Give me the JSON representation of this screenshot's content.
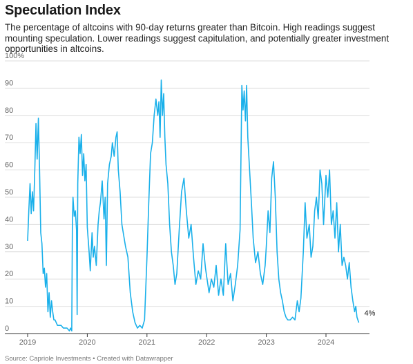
{
  "title": "Speculation Index",
  "subtitle": "The percentage of altcoins with 90-day returns greater than Bitcoin. High readings suggest mounting speculation. Lower readings suggest capitulation, and potentially greater investment opportunities in altcoins.",
  "source": "Source: Capriole Investments • Created with Datawrapper",
  "colors": {
    "line": "#1ab0ea",
    "grid": "#dedede",
    "axis": "#333333"
  },
  "chart_data": {
    "type": "line",
    "title": "Speculation Index",
    "xlabel": "",
    "ylabel": "",
    "ylim": [
      0,
      100
    ],
    "xlim": [
      2019.0,
      2024.67
    ],
    "y_ticks": [
      {
        "value": 100,
        "label": "100%"
      },
      {
        "value": 90,
        "label": "90"
      },
      {
        "value": 80,
        "label": "80"
      },
      {
        "value": 70,
        "label": "70"
      },
      {
        "value": 60,
        "label": "60"
      },
      {
        "value": 50,
        "label": "50"
      },
      {
        "value": 40,
        "label": "40"
      },
      {
        "value": 30,
        "label": "30"
      },
      {
        "value": 20,
        "label": "20"
      },
      {
        "value": 10,
        "label": "10"
      },
      {
        "value": 0,
        "label": "0"
      }
    ],
    "x_ticks": [
      {
        "value": 2019,
        "label": "2019"
      },
      {
        "value": 2020,
        "label": "2020"
      },
      {
        "value": 2021,
        "label": "2021"
      },
      {
        "value": 2022,
        "label": "2022"
      },
      {
        "value": 2023,
        "label": "2023"
      },
      {
        "value": 2024,
        "label": "2024"
      }
    ],
    "grid": true,
    "end_label": "4%",
    "series": [
      {
        "values": [
          [
            2019.0,
            34
          ],
          [
            2019.02,
            45
          ],
          [
            2019.04,
            55
          ],
          [
            2019.06,
            44
          ],
          [
            2019.08,
            52
          ],
          [
            2019.1,
            45
          ],
          [
            2019.12,
            60
          ],
          [
            2019.14,
            77
          ],
          [
            2019.16,
            64
          ],
          [
            2019.18,
            79
          ],
          [
            2019.2,
            60
          ],
          [
            2019.22,
            37
          ],
          [
            2019.24,
            33
          ],
          [
            2019.26,
            22
          ],
          [
            2019.28,
            24
          ],
          [
            2019.3,
            17
          ],
          [
            2019.32,
            22
          ],
          [
            2019.34,
            8
          ],
          [
            2019.36,
            15
          ],
          [
            2019.38,
            6
          ],
          [
            2019.4,
            12
          ],
          [
            2019.42,
            8
          ],
          [
            2019.44,
            5
          ],
          [
            2019.46,
            5
          ],
          [
            2019.5,
            3
          ],
          [
            2019.56,
            3
          ],
          [
            2019.6,
            2
          ],
          [
            2019.66,
            2
          ],
          [
            2019.7,
            1
          ],
          [
            2019.72,
            2
          ],
          [
            2019.74,
            1
          ],
          [
            2019.75,
            40
          ],
          [
            2019.76,
            50
          ],
          [
            2019.78,
            43
          ],
          [
            2019.8,
            45
          ],
          [
            2019.82,
            38
          ],
          [
            2019.83,
            7
          ],
          [
            2019.84,
            55
          ],
          [
            2019.86,
            72
          ],
          [
            2019.88,
            66
          ],
          [
            2019.9,
            73
          ],
          [
            2019.92,
            58
          ],
          [
            2019.94,
            66
          ],
          [
            2019.96,
            56
          ],
          [
            2019.98,
            62
          ],
          [
            2020.0,
            39
          ],
          [
            2020.03,
            30
          ],
          [
            2020.05,
            23
          ],
          [
            2020.08,
            37
          ],
          [
            2020.1,
            28
          ],
          [
            2020.12,
            32
          ],
          [
            2020.15,
            25
          ],
          [
            2020.18,
            40
          ],
          [
            2020.2,
            45
          ],
          [
            2020.22,
            48
          ],
          [
            2020.25,
            56
          ],
          [
            2020.28,
            42
          ],
          [
            2020.3,
            50
          ],
          [
            2020.32,
            25
          ],
          [
            2020.34,
            55
          ],
          [
            2020.37,
            62
          ],
          [
            2020.4,
            65
          ],
          [
            2020.42,
            70
          ],
          [
            2020.45,
            65
          ],
          [
            2020.48,
            72
          ],
          [
            2020.5,
            74
          ],
          [
            2020.52,
            60
          ],
          [
            2020.55,
            52
          ],
          [
            2020.58,
            40
          ],
          [
            2020.61,
            36
          ],
          [
            2020.64,
            32
          ],
          [
            2020.68,
            28
          ],
          [
            2020.72,
            15
          ],
          [
            2020.76,
            8
          ],
          [
            2020.8,
            4
          ],
          [
            2020.84,
            2
          ],
          [
            2020.88,
            3
          ],
          [
            2020.92,
            2
          ],
          [
            2020.96,
            5
          ],
          [
            2021.0,
            28
          ],
          [
            2021.03,
            48
          ],
          [
            2021.06,
            66
          ],
          [
            2021.09,
            70
          ],
          [
            2021.12,
            80
          ],
          [
            2021.15,
            86
          ],
          [
            2021.18,
            80
          ],
          [
            2021.2,
            85
          ],
          [
            2021.22,
            72
          ],
          [
            2021.24,
            93
          ],
          [
            2021.26,
            80
          ],
          [
            2021.28,
            88
          ],
          [
            2021.3,
            72
          ],
          [
            2021.32,
            62
          ],
          [
            2021.35,
            55
          ],
          [
            2021.38,
            40
          ],
          [
            2021.41,
            30
          ],
          [
            2021.44,
            25
          ],
          [
            2021.47,
            18
          ],
          [
            2021.5,
            22
          ],
          [
            2021.54,
            38
          ],
          [
            2021.58,
            52
          ],
          [
            2021.62,
            57
          ],
          [
            2021.66,
            45
          ],
          [
            2021.7,
            35
          ],
          [
            2021.74,
            40
          ],
          [
            2021.78,
            28
          ],
          [
            2021.82,
            18
          ],
          [
            2021.86,
            23
          ],
          [
            2021.9,
            20
          ],
          [
            2021.94,
            33
          ],
          [
            2021.98,
            24
          ],
          [
            2022.0,
            21
          ],
          [
            2022.04,
            15
          ],
          [
            2022.08,
            20
          ],
          [
            2022.12,
            17
          ],
          [
            2022.16,
            25
          ],
          [
            2022.2,
            14
          ],
          [
            2022.24,
            20
          ],
          [
            2022.28,
            14
          ],
          [
            2022.32,
            33
          ],
          [
            2022.36,
            18
          ],
          [
            2022.4,
            22
          ],
          [
            2022.44,
            12
          ],
          [
            2022.48,
            18
          ],
          [
            2022.52,
            25
          ],
          [
            2022.56,
            38
          ],
          [
            2022.59,
            91
          ],
          [
            2022.61,
            82
          ],
          [
            2022.63,
            89
          ],
          [
            2022.65,
            78
          ],
          [
            2022.67,
            91
          ],
          [
            2022.69,
            72
          ],
          [
            2022.72,
            60
          ],
          [
            2022.75,
            48
          ],
          [
            2022.78,
            35
          ],
          [
            2022.82,
            26
          ],
          [
            2022.86,
            30
          ],
          [
            2022.9,
            22
          ],
          [
            2022.94,
            18
          ],
          [
            2022.98,
            25
          ],
          [
            2023.0,
            32
          ],
          [
            2023.03,
            45
          ],
          [
            2023.06,
            37
          ],
          [
            2023.09,
            57
          ],
          [
            2023.12,
            63
          ],
          [
            2023.15,
            50
          ],
          [
            2023.18,
            30
          ],
          [
            2023.21,
            20
          ],
          [
            2023.24,
            15
          ],
          [
            2023.27,
            12
          ],
          [
            2023.3,
            8
          ],
          [
            2023.33,
            6
          ],
          [
            2023.36,
            5
          ],
          [
            2023.4,
            5
          ],
          [
            2023.44,
            6
          ],
          [
            2023.48,
            5
          ],
          [
            2023.52,
            12
          ],
          [
            2023.55,
            8
          ],
          [
            2023.58,
            13
          ],
          [
            2023.62,
            30
          ],
          [
            2023.65,
            48
          ],
          [
            2023.68,
            35
          ],
          [
            2023.72,
            40
          ],
          [
            2023.75,
            28
          ],
          [
            2023.78,
            32
          ],
          [
            2023.81,
            45
          ],
          [
            2023.84,
            50
          ],
          [
            2023.87,
            42
          ],
          [
            2023.9,
            60
          ],
          [
            2023.93,
            55
          ],
          [
            2023.96,
            40
          ],
          [
            2024.0,
            58
          ],
          [
            2024.03,
            50
          ],
          [
            2024.06,
            60
          ],
          [
            2024.09,
            40
          ],
          [
            2024.12,
            45
          ],
          [
            2024.15,
            35
          ],
          [
            2024.18,
            48
          ],
          [
            2024.21,
            30
          ],
          [
            2024.24,
            40
          ],
          [
            2024.27,
            25
          ],
          [
            2024.3,
            28
          ],
          [
            2024.33,
            25
          ],
          [
            2024.36,
            20
          ],
          [
            2024.39,
            26
          ],
          [
            2024.42,
            17
          ],
          [
            2024.45,
            12
          ],
          [
            2024.48,
            8
          ],
          [
            2024.5,
            10
          ],
          [
            2024.52,
            6
          ],
          [
            2024.55,
            4
          ]
        ]
      }
    ]
  }
}
